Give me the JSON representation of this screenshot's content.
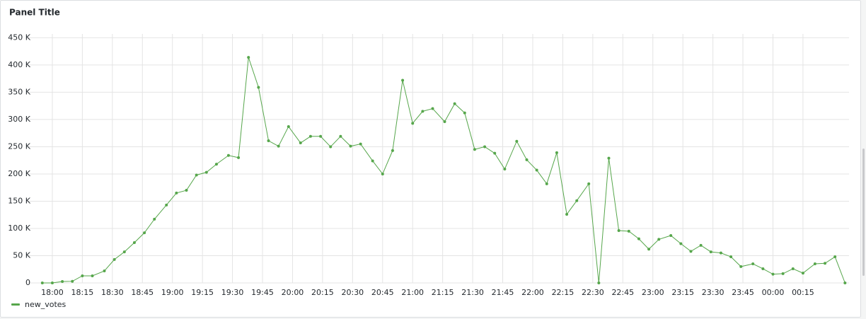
{
  "chart_data": {
    "type": "line",
    "title": "Panel Title",
    "x": [
      -5,
      0,
      5,
      10,
      15,
      20,
      26,
      31,
      36,
      41,
      46,
      51,
      57,
      62,
      67,
      72,
      77,
      82,
      88,
      93,
      98,
      103,
      108,
      113,
      118,
      124,
      129,
      134,
      139,
      144,
      149,
      154,
      160,
      165,
      170,
      175,
      180,
      185,
      190,
      196,
      201,
      206,
      211,
      216,
      221,
      226,
      232,
      237,
      242,
      247,
      252,
      257,
      262,
      268,
      273,
      278,
      283,
      288,
      293,
      298,
      303,
      309,
      314,
      319,
      324,
      329,
      334,
      339,
      344,
      350,
      355,
      360,
      365,
      370,
      375,
      381,
      386,
      391,
      396
    ],
    "series": [
      {
        "name": "new_votes",
        "color": "#56a64b",
        "values": [
          0,
          0,
          2600,
          3000,
          13000,
          13000,
          22000,
          43000,
          57000,
          74000,
          92000,
          117000,
          143000,
          165000,
          170000,
          198000,
          203000,
          218000,
          234000,
          230000,
          414000,
          359000,
          261000,
          251000,
          287000,
          257000,
          269000,
          269000,
          250000,
          269000,
          251000,
          255000,
          224000,
          200000,
          243000,
          372000,
          293000,
          315000,
          320000,
          296000,
          329000,
          312000,
          245000,
          250000,
          238000,
          209000,
          260000,
          226000,
          207000,
          182000,
          239000,
          126000,
          151000,
          182000,
          0,
          229000,
          96000,
          95000,
          81000,
          62000,
          80000,
          87000,
          72000,
          58000,
          69000,
          57000,
          55000,
          48000,
          30000,
          35000,
          26000,
          16000,
          17000,
          26000,
          18000,
          35000,
          36000,
          48000,
          0
        ]
      }
    ],
    "xlim": [
      -12,
      398
    ],
    "xticks": [
      {
        "value": 0,
        "label": "18:00"
      },
      {
        "value": 15,
        "label": "18:15"
      },
      {
        "value": 30,
        "label": "18:30"
      },
      {
        "value": 45,
        "label": "18:45"
      },
      {
        "value": 60,
        "label": "19:00"
      },
      {
        "value": 75,
        "label": "19:15"
      },
      {
        "value": 90,
        "label": "19:30"
      },
      {
        "value": 105,
        "label": "19:45"
      },
      {
        "value": 120,
        "label": "20:00"
      },
      {
        "value": 135,
        "label": "20:15"
      },
      {
        "value": 150,
        "label": "20:30"
      },
      {
        "value": 165,
        "label": "20:45"
      },
      {
        "value": 180,
        "label": "21:00"
      },
      {
        "value": 195,
        "label": "21:15"
      },
      {
        "value": 210,
        "label": "21:30"
      },
      {
        "value": 225,
        "label": "21:45"
      },
      {
        "value": 240,
        "label": "22:00"
      },
      {
        "value": 255,
        "label": "22:15"
      },
      {
        "value": 270,
        "label": "22:30"
      },
      {
        "value": 285,
        "label": "22:45"
      },
      {
        "value": 300,
        "label": "23:00"
      },
      {
        "value": 315,
        "label": "23:15"
      },
      {
        "value": 330,
        "label": "23:30"
      },
      {
        "value": 345,
        "label": "23:45"
      },
      {
        "value": 360,
        "label": "00:00"
      },
      {
        "value": 375,
        "label": "00:15"
      }
    ],
    "ylim": [
      0,
      457000
    ],
    "yticks": [
      0,
      {
        "value": 50000,
        "label": "50 K"
      },
      {
        "value": 100000,
        "label": "100 K"
      },
      {
        "value": 150000,
        "label": "150 K"
      },
      {
        "value": 200000,
        "label": "200 K"
      },
      {
        "value": 250000,
        "label": "250 K"
      },
      {
        "value": 300000,
        "label": "300 K"
      },
      {
        "value": 350000,
        "label": "350 K"
      },
      {
        "value": 400000,
        "label": "400 K"
      },
      {
        "value": 450000,
        "label": "450 K"
      }
    ],
    "grid": true
  }
}
